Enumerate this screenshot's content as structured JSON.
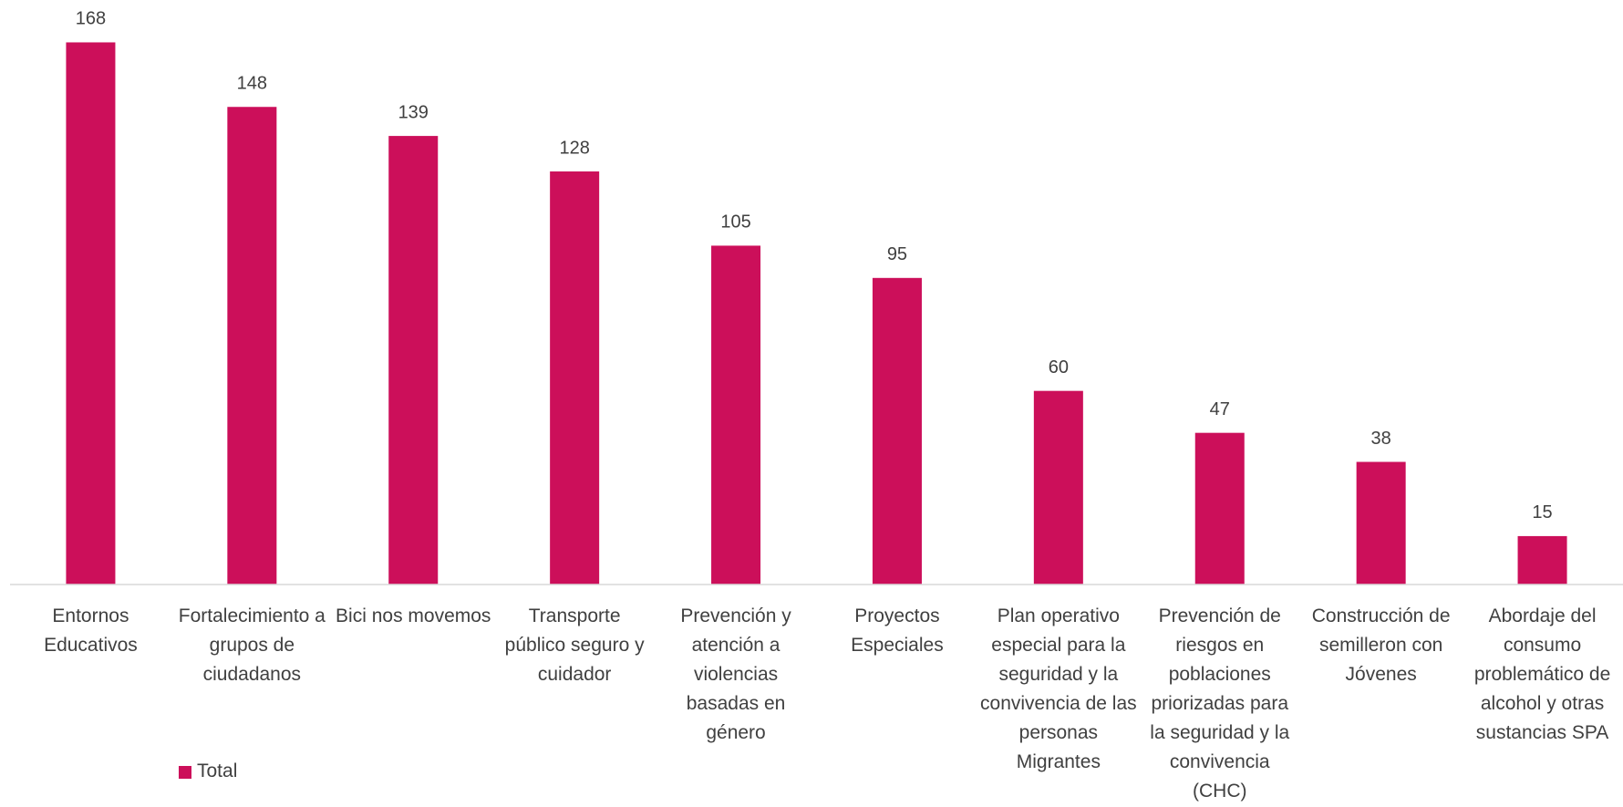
{
  "chart_data": {
    "type": "bar",
    "categories": [
      "Entornos Educativos",
      "Fortalecimiento a grupos de ciudadanos",
      "Bici nos movemos",
      "Transporte público seguro y cuidador",
      "Prevención y atención a violencias basadas en género",
      "Proyectos Especiales",
      "Plan operativo especial para la seguridad y la convivencia de las personas Migrantes",
      "Prevención de riesgos en poblaciones priorizadas para la seguridad y la convivencia (CHC)",
      "Construcción de semilleron con Jóvenes",
      "Abordaje del consumo problemático de alcohol y otras sustancias SPA"
    ],
    "series": [
      {
        "name": "Total",
        "color": "#cc0f5a",
        "values": [
          168,
          148,
          139,
          128,
          105,
          95,
          60,
          47,
          38,
          15
        ]
      }
    ],
    "ylim": [
      0,
      180
    ],
    "grid": false,
    "legend": "bottom-left"
  }
}
